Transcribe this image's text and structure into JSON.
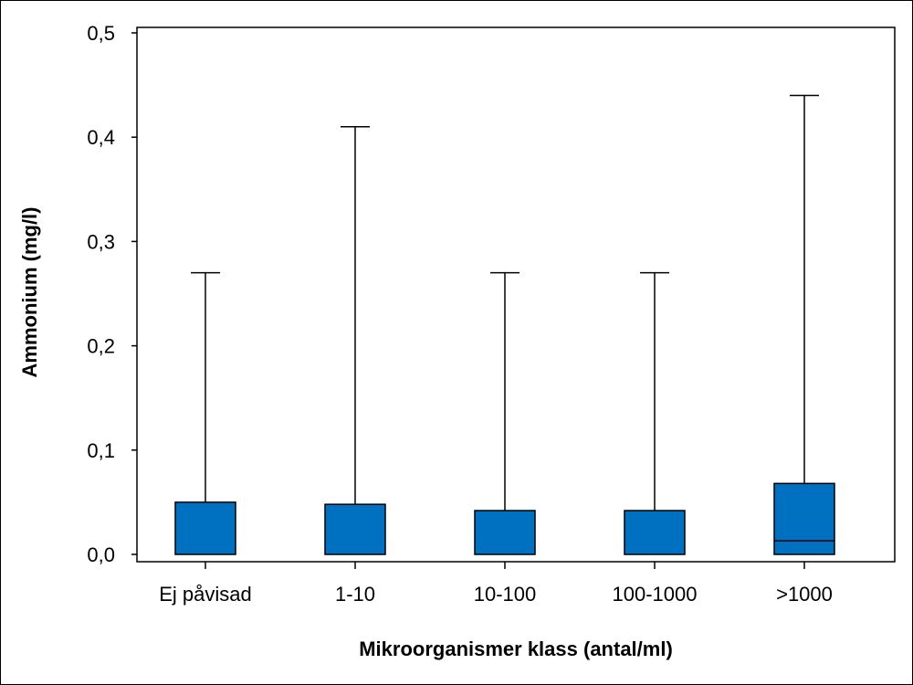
{
  "chart_data": {
    "type": "box",
    "xlabel": "Mikroorganismer klass (antal/ml)",
    "ylabel": "Ammonium (mg/l)",
    "ylim": [
      0,
      0.5
    ],
    "yticks": [
      0.0,
      0.1,
      0.2,
      0.3,
      0.4,
      0.5
    ],
    "ytick_labels": [
      "0,0",
      "0,1",
      "0,2",
      "0,3",
      "0,4",
      "0,5"
    ],
    "categories": [
      "Ej påvisad",
      "1-10",
      "10-100",
      "100-1000",
      ">1000"
    ],
    "boxes": [
      {
        "min": 0.0,
        "q1": 0.0,
        "median": 0.0,
        "q3": 0.05,
        "max": 0.27
      },
      {
        "min": 0.0,
        "q1": 0.0,
        "median": 0.0,
        "q3": 0.048,
        "max": 0.41
      },
      {
        "min": 0.0,
        "q1": 0.0,
        "median": 0.0,
        "q3": 0.042,
        "max": 0.27
      },
      {
        "min": 0.0,
        "q1": 0.0,
        "median": 0.0,
        "q3": 0.042,
        "max": 0.27
      },
      {
        "min": 0.0,
        "q1": 0.0,
        "median": 0.013,
        "q3": 0.068,
        "max": 0.44
      }
    ],
    "box_color": "#0070c0",
    "grid": false,
    "legend": "none"
  }
}
